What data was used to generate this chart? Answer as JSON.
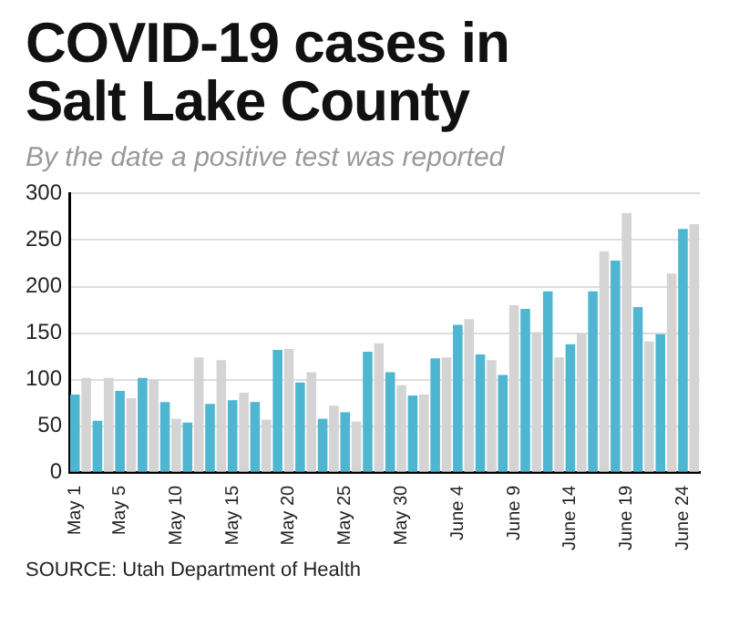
{
  "chart_data": {
    "type": "bar",
    "title": "COVID-19 cases in Salt Lake County",
    "subtitle": "By the date a positive test was reported",
    "categories": [
      "May 1",
      null,
      null,
      null,
      "May 5",
      null,
      null,
      null,
      null,
      "May 10",
      null,
      null,
      null,
      null,
      "May 15",
      null,
      null,
      null,
      null,
      "May 20",
      null,
      null,
      null,
      null,
      "May 25",
      null,
      null,
      null,
      null,
      "May 30",
      null,
      null,
      null,
      null,
      "June 4",
      null,
      null,
      null,
      null,
      "June 9",
      null,
      null,
      null,
      null,
      "June 14",
      null,
      null,
      null,
      null,
      "June 19",
      null,
      null,
      null,
      null,
      "June 24",
      null
    ],
    "values": [
      84,
      102,
      56,
      102,
      88,
      80,
      102,
      100,
      76,
      58,
      54,
      124,
      74,
      121,
      78,
      86,
      76,
      57,
      132,
      133,
      97,
      108,
      58,
      72,
      65,
      55,
      130,
      139,
      108,
      94,
      83,
      84,
      123,
      124,
      159,
      165,
      127,
      121,
      105,
      180,
      176,
      151,
      195,
      124,
      138,
      150,
      195,
      238,
      228,
      279,
      178,
      141,
      149,
      214,
      262,
      267
    ],
    "colors": [
      "#4fb6d2",
      "#d4d4d4",
      "#4fb6d2",
      "#d4d4d4",
      "#4fb6d2",
      "#d4d4d4",
      "#4fb6d2",
      "#d4d4d4",
      "#4fb6d2",
      "#d4d4d4",
      "#4fb6d2",
      "#d4d4d4",
      "#4fb6d2",
      "#d4d4d4",
      "#4fb6d2",
      "#d4d4d4",
      "#4fb6d2",
      "#d4d4d4",
      "#4fb6d2",
      "#d4d4d4",
      "#4fb6d2",
      "#d4d4d4",
      "#4fb6d2",
      "#d4d4d4",
      "#4fb6d2",
      "#d4d4d4",
      "#4fb6d2",
      "#d4d4d4",
      "#4fb6d2",
      "#d4d4d4",
      "#4fb6d2",
      "#d4d4d4",
      "#4fb6d2",
      "#d4d4d4",
      "#4fb6d2",
      "#d4d4d4",
      "#4fb6d2",
      "#d4d4d4",
      "#4fb6d2",
      "#d4d4d4",
      "#4fb6d2",
      "#d4d4d4",
      "#4fb6d2",
      "#d4d4d4",
      "#4fb6d2",
      "#d4d4d4",
      "#4fb6d2",
      "#d4d4d4",
      "#4fb6d2",
      "#d4d4d4",
      "#4fb6d2",
      "#d4d4d4",
      "#4fb6d2",
      "#d4d4d4",
      "#4fb6d2",
      "#d4d4d4"
    ],
    "ylim": [
      0,
      300
    ],
    "yticks": [
      0,
      50,
      100,
      150,
      200,
      250,
      300
    ],
    "grid": "y",
    "annotations": [
      "SOURCE: Utah Department of Health"
    ]
  }
}
